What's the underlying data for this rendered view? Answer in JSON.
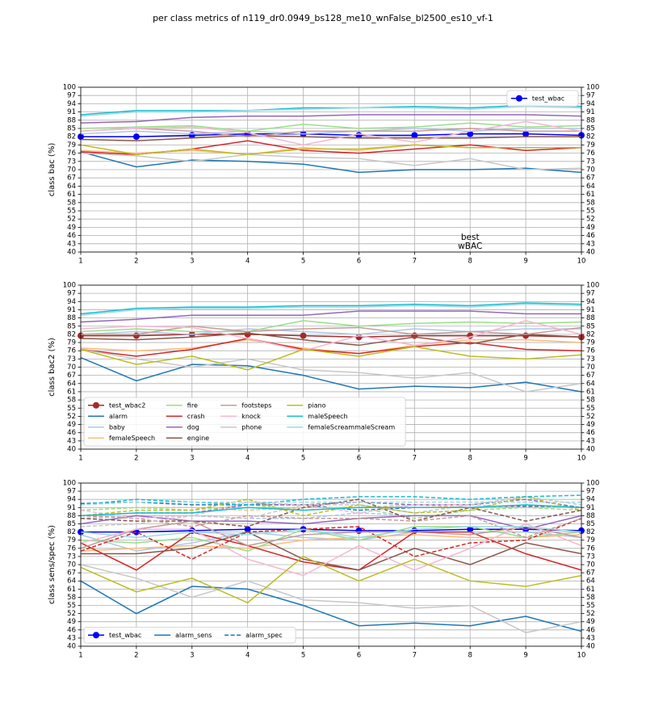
{
  "chart_data": [
    {
      "type": "line",
      "title": "per class metrics of n119_dr0.0949_bs128_me10_wnFalse_bl2500_es10_vf-1",
      "ylabel": "class bac (%)",
      "x": [
        1,
        2,
        3,
        4,
        5,
        6,
        7,
        8,
        9,
        10
      ],
      "xlim": [
        1,
        10
      ],
      "xticks": [
        1,
        2,
        3,
        4,
        5,
        6,
        7,
        8,
        9,
        10
      ],
      "ylim": [
        40,
        100
      ],
      "yticks": [
        40,
        43,
        46,
        49,
        52,
        55,
        58,
        61,
        64,
        67,
        70,
        73,
        76,
        79,
        82,
        85,
        88,
        91,
        94,
        97,
        100
      ],
      "grid": true,
      "legend_loc": "upper right",
      "legend_ncol": 1,
      "annotation": [
        "best",
        "wBAC"
      ],
      "annotation_color": "#0000ff",
      "series": [
        {
          "name": "test_wbac",
          "color": "#0000ff",
          "marker": "o",
          "values": [
            82,
            82,
            82.5,
            83,
            83,
            82.5,
            82.5,
            83,
            83,
            82.5
          ]
        },
        {
          "color": "#1f77b4",
          "values": [
            76.5,
            71,
            73.5,
            73,
            72,
            69,
            70,
            70,
            70.5,
            69
          ]
        },
        {
          "color": "#aec7e8",
          "values": [
            83,
            84,
            83,
            84,
            83,
            84,
            85,
            84,
            85,
            85
          ]
        },
        {
          "color": "#ffbb78",
          "values": [
            77,
            76,
            77,
            75.5,
            78,
            77,
            79,
            78,
            78,
            78
          ]
        },
        {
          "color": "#98df8a",
          "values": [
            85,
            85.5,
            86,
            84,
            86.5,
            85,
            85.5,
            87,
            85.5,
            86
          ]
        },
        {
          "color": "#d62728",
          "values": [
            76.5,
            75.5,
            77.5,
            80.5,
            77,
            76,
            77.5,
            79,
            77,
            78
          ]
        },
        {
          "color": "#9467bd",
          "values": [
            87,
            87.5,
            89,
            89.5,
            89.5,
            90,
            90,
            90,
            90,
            89.5
          ]
        },
        {
          "color": "#8c564b",
          "values": [
            81,
            80.5,
            81.5,
            82.5,
            82,
            81.5,
            81.5,
            81.5,
            82,
            82
          ]
        },
        {
          "color": "#c49c94",
          "values": [
            84,
            85,
            84,
            82,
            84,
            84,
            84,
            85,
            84,
            84
          ]
        },
        {
          "color": "#f7b6d2",
          "values": [
            84,
            85,
            85.5,
            83.5,
            79,
            83,
            80,
            84,
            87.5,
            84
          ]
        },
        {
          "color": "#c7c7c7",
          "values": [
            76,
            75,
            73,
            75.5,
            74.5,
            74,
            71.5,
            74,
            70,
            70.5
          ]
        },
        {
          "color": "#bcbd22",
          "values": [
            79,
            75.5,
            77.5,
            75.5,
            77.5,
            77.5,
            79,
            78,
            78,
            78
          ]
        },
        {
          "color": "#17becf",
          "values": [
            90,
            91.5,
            91.5,
            91.5,
            92.5,
            92.5,
            93,
            92.5,
            93.5,
            93
          ]
        },
        {
          "color": "#9edae5",
          "values": [
            89.5,
            91,
            91,
            91.5,
            92,
            92.5,
            92.5,
            92,
            93,
            92.5
          ]
        }
      ]
    },
    {
      "type": "line",
      "ylabel": "class bac2 (%)",
      "x": [
        1,
        2,
        3,
        4,
        5,
        6,
        7,
        8,
        9,
        10
      ],
      "xlim": [
        1,
        10
      ],
      "xticks": [
        1,
        2,
        3,
        4,
        5,
        6,
        7,
        8,
        9,
        10
      ],
      "ylim": [
        40,
        100
      ],
      "yticks": [
        40,
        43,
        46,
        49,
        52,
        55,
        58,
        61,
        64,
        67,
        70,
        73,
        76,
        79,
        82,
        85,
        88,
        91,
        94,
        97,
        100
      ],
      "grid": true,
      "legend_loc": "lower left",
      "legend_ncol": 4,
      "series": [
        {
          "name": "test_wbac2",
          "color": "#a52a2a",
          "marker": "o",
          "values": [
            81.5,
            81.5,
            82,
            82,
            81.5,
            81,
            81.5,
            81.5,
            81.5,
            81
          ]
        },
        {
          "name": "alarm",
          "color": "#1f77b4",
          "values": [
            73.5,
            65,
            71,
            70.5,
            67,
            62,
            63,
            62.5,
            64.5,
            61
          ]
        },
        {
          "name": "baby",
          "color": "#aec7e8",
          "values": [
            82,
            83,
            82,
            84,
            83,
            82,
            84,
            83,
            84,
            84
          ]
        },
        {
          "name": "femaleSpeech",
          "color": "#ffbb78",
          "values": [
            77,
            76,
            77,
            80,
            77,
            75,
            78,
            80,
            80,
            79
          ]
        },
        {
          "name": "fire",
          "color": "#98df8a",
          "values": [
            83,
            84,
            83,
            83,
            87,
            85,
            86,
            86.5,
            86,
            86.5
          ]
        },
        {
          "name": "crash",
          "color": "#d62728",
          "values": [
            76.5,
            74,
            76.5,
            80.5,
            76.5,
            75,
            77.5,
            79,
            76.5,
            76
          ]
        },
        {
          "name": "dog",
          "color": "#9467bd",
          "values": [
            86.5,
            87.5,
            89,
            89,
            89,
            90.5,
            90.5,
            90.5,
            89.5,
            89.5
          ]
        },
        {
          "name": "engine",
          "color": "#8c564b",
          "values": [
            80.5,
            80,
            81,
            82.5,
            80,
            78,
            81,
            78.5,
            82,
            81
          ]
        },
        {
          "name": "footsteps",
          "color": "#c49c94",
          "values": [
            82,
            82,
            85,
            83,
            84,
            84.5,
            82,
            83,
            82,
            84.5
          ]
        },
        {
          "name": "knock",
          "color": "#f7b6d2",
          "values": [
            84,
            85,
            84.5,
            80.5,
            76,
            81.5,
            78,
            81,
            87,
            82
          ]
        },
        {
          "name": "phone",
          "color": "#c7c7c7",
          "values": [
            76.5,
            73,
            70,
            73,
            69,
            68,
            66,
            68,
            61,
            64
          ]
        },
        {
          "name": "piano",
          "color": "#bcbd22",
          "values": [
            76.5,
            71,
            74,
            69,
            76.5,
            74,
            77.5,
            74,
            73,
            74.5
          ]
        },
        {
          "name": "maleSpeech",
          "color": "#17becf",
          "values": [
            89.5,
            91.5,
            92,
            92,
            92.5,
            92.5,
            93,
            92.5,
            93.5,
            93
          ]
        },
        {
          "name": "femaleScreammaleScream",
          "color": "#9edae5",
          "values": [
            89,
            91,
            91.5,
            91.5,
            92,
            92,
            92.5,
            92,
            93,
            92.5
          ]
        }
      ]
    },
    {
      "type": "line",
      "ylabel": "class sens/spec (%)",
      "x": [
        1,
        2,
        3,
        4,
        5,
        6,
        7,
        8,
        9,
        10
      ],
      "xlim": [
        1,
        10
      ],
      "xticks": [
        1,
        2,
        3,
        4,
        5,
        6,
        7,
        8,
        9,
        10
      ],
      "ylim": [
        40,
        100
      ],
      "yticks": [
        40,
        43,
        46,
        49,
        52,
        55,
        58,
        61,
        64,
        67,
        70,
        73,
        76,
        79,
        82,
        85,
        88,
        91,
        94,
        97,
        100
      ],
      "grid": true,
      "legend_loc": "lower left",
      "legend_ncol": 3,
      "series": [
        {
          "name": "test_wbac",
          "color": "#0000ff",
          "marker": "o",
          "values": [
            82,
            82,
            82.5,
            83,
            83,
            82.5,
            82.5,
            83,
            83,
            82.5
          ]
        },
        {
          "name": "alarm_sens",
          "color": "#1f77b4",
          "values": [
            64,
            52,
            62,
            61,
            55,
            47.5,
            48.5,
            47.5,
            51,
            45.5
          ]
        },
        {
          "name": "alarm_spec",
          "color": "#1f77b4",
          "dashed": true,
          "values": [
            92.5,
            93,
            92,
            92,
            92,
            90,
            91,
            91,
            91.5,
            91
          ]
        },
        {
          "color": "#aec7e8",
          "values": [
            81,
            75,
            78,
            82,
            80,
            79,
            82,
            82,
            82,
            80
          ]
        },
        {
          "color": "#aec7e8",
          "dashed": true,
          "values": [
            87,
            88,
            88,
            87,
            87,
            89,
            88,
            88,
            88,
            88
          ]
        },
        {
          "color": "#ffbb78",
          "values": [
            75,
            76,
            77,
            76,
            79,
            80,
            81,
            80,
            80,
            81
          ]
        },
        {
          "color": "#ffbb78",
          "dashed": true,
          "values": [
            90,
            91,
            91,
            90,
            91,
            91,
            92,
            91,
            91,
            91
          ]
        },
        {
          "color": "#98df8a",
          "values": [
            79,
            78,
            80,
            75,
            83,
            79,
            84,
            84,
            80,
            82
          ]
        },
        {
          "color": "#98df8a",
          "dashed": true,
          "values": [
            90,
            91,
            90,
            92,
            90,
            91,
            87,
            90,
            91,
            90
          ]
        },
        {
          "color": "#d62728",
          "values": [
            78,
            68,
            82,
            77,
            71,
            68,
            82,
            82,
            74,
            68
          ]
        },
        {
          "color": "#d62728",
          "dashed": true,
          "values": [
            75,
            82,
            72,
            82,
            83,
            84,
            73,
            78,
            79,
            87
          ]
        },
        {
          "color": "#9467bd",
          "values": [
            85,
            88,
            86,
            86,
            85,
            87,
            88,
            88,
            83,
            88
          ]
        },
        {
          "color": "#9467bd",
          "dashed": true,
          "values": [
            88,
            89,
            89,
            92,
            92,
            93,
            92,
            92,
            94,
            91
          ]
        },
        {
          "color": "#8c564b",
          "values": [
            74,
            74,
            76,
            82,
            72,
            68,
            76,
            70,
            78,
            74
          ]
        },
        {
          "color": "#8c564b",
          "dashed": true,
          "values": [
            87,
            86,
            86,
            84,
            91,
            94,
            86,
            91,
            86,
            90
          ]
        },
        {
          "color": "#c49c94",
          "values": [
            76,
            83,
            86,
            77,
            81,
            82,
            82,
            81,
            84,
            80
          ]
        },
        {
          "color": "#c49c94",
          "dashed": true,
          "values": [
            88,
            87,
            84,
            88,
            87,
            87,
            86,
            88,
            80,
            87
          ]
        },
        {
          "color": "#f7b6d2",
          "values": [
            78,
            83,
            83,
            72,
            66,
            77,
            68,
            76,
            85,
            77
          ]
        },
        {
          "color": "#f7b6d2",
          "dashed": true,
          "values": [
            90,
            87,
            88,
            93,
            92,
            89,
            92,
            92,
            91,
            91
          ]
        },
        {
          "color": "#c7c7c7",
          "values": [
            70,
            65,
            58,
            64,
            57,
            56,
            54,
            55,
            45,
            49
          ]
        },
        {
          "color": "#c7c7c7",
          "dashed": true,
          "values": [
            84,
            85,
            88,
            87,
            92,
            92,
            89,
            92,
            95,
            92
          ]
        },
        {
          "color": "#bcbd22",
          "values": [
            69,
            60,
            65,
            56,
            73,
            64,
            72,
            64,
            62,
            66
          ]
        },
        {
          "color": "#bcbd22",
          "dashed": true,
          "values": [
            88,
            90,
            90,
            94,
            88,
            92,
            89,
            90,
            95,
            90
          ]
        },
        {
          "color": "#17becf",
          "values": [
            88,
            89,
            89,
            91,
            90,
            91,
            91,
            91,
            92,
            91
          ]
        },
        {
          "color": "#17becf",
          "dashed": true,
          "values": [
            92,
            94,
            93,
            92,
            94,
            95,
            95,
            94,
            95,
            95.5
          ]
        },
        {
          "color": "#9edae5",
          "values": [
            82,
            80,
            82,
            81,
            83,
            80,
            83,
            84,
            84,
            82
          ]
        },
        {
          "color": "#9edae5",
          "dashed": true,
          "values": [
            92,
            93,
            93,
            93,
            93,
            93,
            93,
            93,
            93,
            93
          ]
        }
      ]
    }
  ]
}
